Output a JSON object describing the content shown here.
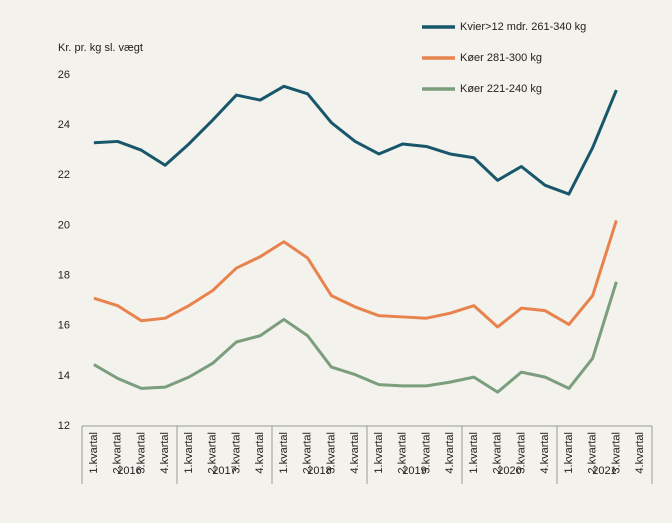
{
  "chart_data": {
    "type": "line",
    "y_label": "Kr. pr. kg sl. vægt",
    "categories": [
      "1.kvartal",
      "2.kvartal",
      "3.kvartal",
      "4.kvartal",
      "1.kvartal",
      "2.kvartal",
      "3.kvartal",
      "4.kvartal",
      "1.kvartal",
      "2.kvartal",
      "3.kvartal",
      "4.kvartal",
      "1.kvartal",
      "2.kvartal",
      "3.kvartal",
      "4.kvartal",
      "1.kvartal",
      "2.kvartal",
      "3.kvartal",
      "4.kvartal",
      "1.kvartal",
      "2.kvartal",
      "3.kvartal",
      "4.kvartal"
    ],
    "years": [
      "2016",
      "2017",
      "2018",
      "2019",
      "2020",
      "2021"
    ],
    "series": [
      {
        "name": "Kvier>12 mdr. 261-340 kg",
        "color": "#17566b",
        "values": [
          23.3,
          23.35,
          23.0,
          22.4,
          23.25,
          24.2,
          25.2,
          25.0,
          25.55,
          25.25,
          24.1,
          23.35,
          22.85,
          23.25,
          23.15,
          22.85,
          22.7,
          21.8,
          22.35,
          21.6,
          21.25,
          23.1,
          25.4,
          null
        ]
      },
      {
        "name": "Køer 281-300 kg",
        "color": "#e8834e",
        "values": [
          17.1,
          16.8,
          16.2,
          16.3,
          16.8,
          17.4,
          18.3,
          18.75,
          19.35,
          18.7,
          17.2,
          16.75,
          16.4,
          16.35,
          16.3,
          16.5,
          16.8,
          15.95,
          16.7,
          16.6,
          16.05,
          17.2,
          20.2,
          null
        ]
      },
      {
        "name": "Køer 221-240 kg",
        "color": "#7a9e7e",
        "values": [
          14.45,
          13.9,
          13.5,
          13.55,
          13.95,
          14.5,
          15.35,
          15.6,
          16.25,
          15.6,
          14.35,
          14.05,
          13.65,
          13.6,
          13.6,
          13.75,
          13.95,
          13.35,
          14.15,
          13.95,
          13.5,
          14.7,
          17.75,
          null
        ]
      }
    ],
    "ylim": [
      12,
      26
    ],
    "yticks": [
      12,
      14,
      16,
      18,
      20,
      22,
      24,
      26
    ],
    "grid": false
  }
}
